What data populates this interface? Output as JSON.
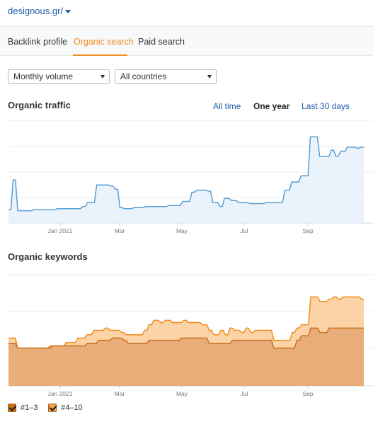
{
  "header": {
    "site": "designous.gr/"
  },
  "tabs": [
    {
      "label": "Backlink profile",
      "active": false
    },
    {
      "label": "Organic search",
      "active": true
    },
    {
      "label": "Paid search",
      "active": false
    }
  ],
  "filters": {
    "volume": "Monthly volume",
    "country": "All countries"
  },
  "traffic": {
    "title": "Organic traffic",
    "ranges": [
      "All time",
      "One year",
      "Last 30 days"
    ],
    "selected_range": "One year"
  },
  "keywords": {
    "title": "Organic keywords"
  },
  "legend": [
    {
      "label": "#1–3",
      "color": "#c9701f"
    },
    {
      "label": "#4–10",
      "color": "#f6a64a"
    }
  ],
  "chart_data": [
    {
      "type": "line",
      "title": "Organic traffic",
      "x_ticks": [
        "Jan 2021",
        "Mar",
        "May",
        "Jul",
        "Sep"
      ],
      "series": [
        {
          "color": "#5a9fd4",
          "values": [
            0.13,
            0.13,
            0.42,
            0.42,
            0.12,
            0.12,
            0.12,
            0.12,
            0.12,
            0.12,
            0.12,
            0.13,
            0.13,
            0.13,
            0.13,
            0.13,
            0.13,
            0.13,
            0.13,
            0.13,
            0.13,
            0.14,
            0.14,
            0.14,
            0.14,
            0.14,
            0.14,
            0.14,
            0.14,
            0.14,
            0.14,
            0.14,
            0.16,
            0.16,
            0.2,
            0.2,
            0.2,
            0.2,
            0.37,
            0.37,
            0.37,
            0.37,
            0.37,
            0.37,
            0.36,
            0.36,
            0.33,
            0.33,
            0.15,
            0.15,
            0.14,
            0.14,
            0.14,
            0.14,
            0.15,
            0.15,
            0.15,
            0.15,
            0.15,
            0.16,
            0.16,
            0.16,
            0.16,
            0.16,
            0.16,
            0.16,
            0.16,
            0.16,
            0.16,
            0.17,
            0.17,
            0.17,
            0.17,
            0.17,
            0.17,
            0.21,
            0.21,
            0.21,
            0.21,
            0.3,
            0.3,
            0.32,
            0.32,
            0.32,
            0.32,
            0.32,
            0.31,
            0.31,
            0.2,
            0.2,
            0.2,
            0.16,
            0.16,
            0.24,
            0.24,
            0.24,
            0.22,
            0.22,
            0.22,
            0.2,
            0.2,
            0.2,
            0.2,
            0.2,
            0.19,
            0.19,
            0.19,
            0.19,
            0.19,
            0.19,
            0.19,
            0.2,
            0.2,
            0.2,
            0.2,
            0.2,
            0.2,
            0.2,
            0.2,
            0.32,
            0.32,
            0.32,
            0.4,
            0.4,
            0.4,
            0.4,
            0.46,
            0.46,
            0.46,
            0.46,
            0.84,
            0.84,
            0.84,
            0.84,
            0.65,
            0.65,
            0.65,
            0.65,
            0.65,
            0.71,
            0.71,
            0.65,
            0.65,
            0.7,
            0.7,
            0.7,
            0.74,
            0.74,
            0.74,
            0.74,
            0.73,
            0.73,
            0.74,
            0.74
          ]
        }
      ]
    },
    {
      "type": "area",
      "title": "Organic keywords",
      "x_ticks": [
        "Jan 2021",
        "Mar",
        "May",
        "Jul",
        "Sep"
      ],
      "series": [
        {
          "name": "#4–10",
          "color": "#f08c1e",
          "values": [
            0.43,
            0.43,
            0.43,
            0.43,
            0.34,
            0.34,
            0.34,
            0.34,
            0.34,
            0.34,
            0.34,
            0.34,
            0.34,
            0.34,
            0.34,
            0.34,
            0.34,
            0.34,
            0.36,
            0.36,
            0.36,
            0.36,
            0.36,
            0.36,
            0.36,
            0.39,
            0.39,
            0.39,
            0.39,
            0.39,
            0.43,
            0.43,
            0.43,
            0.43,
            0.46,
            0.46,
            0.46,
            0.5,
            0.5,
            0.5,
            0.5,
            0.5,
            0.52,
            0.52,
            0.5,
            0.5,
            0.5,
            0.5,
            0.5,
            0.48,
            0.48,
            0.46,
            0.46,
            0.46,
            0.46,
            0.46,
            0.46,
            0.46,
            0.46,
            0.5,
            0.5,
            0.55,
            0.55,
            0.59,
            0.59,
            0.59,
            0.57,
            0.57,
            0.59,
            0.59,
            0.59,
            0.57,
            0.57,
            0.57,
            0.57,
            0.57,
            0.59,
            0.59,
            0.57,
            0.57,
            0.57,
            0.57,
            0.57,
            0.57,
            0.55,
            0.55,
            0.55,
            0.5,
            0.5,
            0.46,
            0.46,
            0.46,
            0.5,
            0.5,
            0.46,
            0.46,
            0.52,
            0.52,
            0.5,
            0.5,
            0.5,
            0.48,
            0.48,
            0.52,
            0.52,
            0.48,
            0.48,
            0.5,
            0.5,
            0.5,
            0.5,
            0.5,
            0.5,
            0.5,
            0.5,
            0.41,
            0.41,
            0.41,
            0.41,
            0.41,
            0.41,
            0.41,
            0.41,
            0.48,
            0.48,
            0.52,
            0.52,
            0.55,
            0.55,
            0.55,
            0.55,
            0.8,
            0.8,
            0.8,
            0.8,
            0.76,
            0.76,
            0.76,
            0.76,
            0.78,
            0.78,
            0.8,
            0.8,
            0.78,
            0.78,
            0.8,
            0.8,
            0.8,
            0.8,
            0.8,
            0.8,
            0.8,
            0.8,
            0.78,
            0.78
          ]
        },
        {
          "name": "#1–3",
          "color": "#c9701f",
          "values": [
            0.38,
            0.38,
            0.38,
            0.38,
            0.34,
            0.34,
            0.34,
            0.34,
            0.34,
            0.34,
            0.34,
            0.34,
            0.34,
            0.34,
            0.34,
            0.34,
            0.34,
            0.34,
            0.34,
            0.36,
            0.36,
            0.36,
            0.36,
            0.36,
            0.36,
            0.36,
            0.36,
            0.36,
            0.36,
            0.36,
            0.36,
            0.36,
            0.36,
            0.36,
            0.38,
            0.38,
            0.38,
            0.38,
            0.38,
            0.41,
            0.41,
            0.41,
            0.41,
            0.41,
            0.41,
            0.43,
            0.43,
            0.43,
            0.43,
            0.43,
            0.41,
            0.41,
            0.38,
            0.38,
            0.38,
            0.38,
            0.38,
            0.38,
            0.38,
            0.38,
            0.38,
            0.41,
            0.41,
            0.41,
            0.41,
            0.41,
            0.41,
            0.41,
            0.41,
            0.41,
            0.41,
            0.41,
            0.41,
            0.41,
            0.41,
            0.43,
            0.43,
            0.43,
            0.43,
            0.43,
            0.43,
            0.43,
            0.43,
            0.43,
            0.43,
            0.43,
            0.43,
            0.38,
            0.38,
            0.38,
            0.38,
            0.38,
            0.38,
            0.38,
            0.38,
            0.38,
            0.38,
            0.41,
            0.41,
            0.41,
            0.41,
            0.41,
            0.41,
            0.41,
            0.41,
            0.41,
            0.41,
            0.41,
            0.41,
            0.41,
            0.41,
            0.41,
            0.41,
            0.41,
            0.41,
            0.34,
            0.34,
            0.34,
            0.34,
            0.34,
            0.34,
            0.34,
            0.34,
            0.34,
            0.34,
            0.41,
            0.41,
            0.45,
            0.45,
            0.45,
            0.45,
            0.52,
            0.52,
            0.52,
            0.52,
            0.48,
            0.48,
            0.48,
            0.48,
            0.52,
            0.52,
            0.52,
            0.52,
            0.52,
            0.52,
            0.52,
            0.52,
            0.52,
            0.52,
            0.52,
            0.52,
            0.52,
            0.52,
            0.52,
            0.52
          ]
        }
      ]
    }
  ]
}
